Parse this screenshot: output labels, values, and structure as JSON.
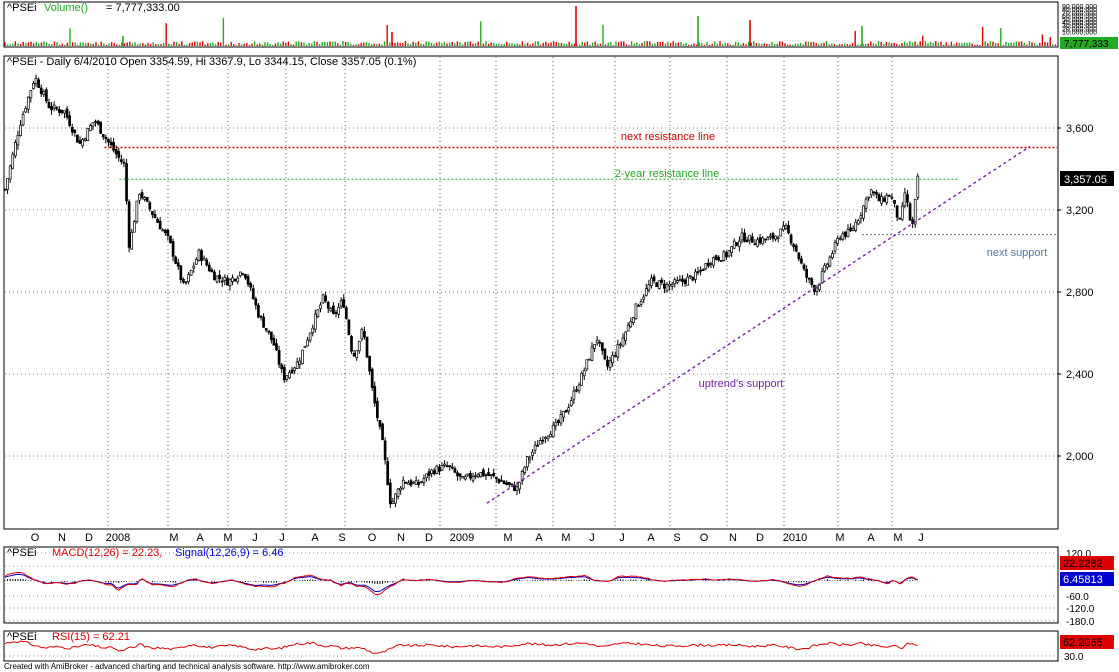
{
  "volume_panel": {
    "title_symbol": "^PSEi",
    "title_indicator": "Volume()",
    "title_value": "= 7,777,333.00",
    "axis_ticks": [
      "90,000,000",
      "80,000,000",
      "70,000,000",
      "60,000,000",
      "50,000,000",
      "40,000,000",
      "30,000,000",
      "20,000,000",
      "10,000,000"
    ],
    "last_value_label": "7,777,333"
  },
  "price_panel": {
    "title": "^PSEi - Daily 6/4/2010 Open 3354.59, Hi 3367.9, Lo 3344.15, Close 3357.05 (0.1%)",
    "y_ticks": [
      "3,600",
      "3,200",
      "2,800",
      "2,400",
      "2,000"
    ],
    "last_price_label": "3,357.05",
    "x_labels": [
      "O",
      "N",
      "D",
      "2008",
      "M",
      "A",
      "M",
      "J",
      "J",
      "A",
      "S",
      "O",
      "N",
      "D",
      "2009",
      "M",
      "A",
      "M",
      "J",
      "J",
      "A",
      "S",
      "O",
      "N",
      "D",
      "2010",
      "M",
      "A",
      "M",
      "J"
    ],
    "annotations": {
      "next_resistance": "next resistance line",
      "two_year_resistance": "2-year resistance line",
      "next_support": "next support",
      "uptrend_support": "uptrend's support"
    }
  },
  "macd_panel": {
    "symbol": "^PSEi",
    "macd_label": "MACD(12,26) = 22.23,",
    "signal_label": "Signal(12,26,9) = 6.46",
    "y_ticks": [
      "120.0",
      "60.0",
      "-60.0",
      "-120.0",
      "-180.0"
    ],
    "macd_value": "22.2282",
    "signal_value": "6.45813"
  },
  "rsi_panel": {
    "symbol": "^PSEi",
    "rsi_label": "RSI(15) = 62.21",
    "y_ticks": [
      "30.0"
    ],
    "rsi_value": "62.2065"
  },
  "footer": "Created with AmiBroker - advanced charting and technical analysis software. http://www.amibroker.com",
  "colors": {
    "up": "#ffffff",
    "down": "#000000",
    "resistance_red": "#cc0000",
    "resistance_green": "#22aa22",
    "support_blue": "#557799",
    "uptrend_purple": "#7a1fa2",
    "macd_red": "#dd0000",
    "signal_blue": "#0000cc",
    "rsi_red": "#dd0000"
  },
  "chart_data": {
    "type": "candlestick",
    "title": "^PSEi - Daily 6/4/2010 Open 3354.59, Hi 3367.9, Lo 3344.15, Close 3357.05 (0.1%)",
    "ylim": [
      1750,
      3950
    ],
    "x": [
      "O",
      "N",
      "D",
      "2008",
      "M",
      "A",
      "M",
      "J",
      "J",
      "A",
      "S",
      "O",
      "N",
      "D",
      "2009",
      "M",
      "A",
      "M",
      "J",
      "J",
      "A",
      "S",
      "O",
      "N",
      "D",
      "2010",
      "M",
      "A",
      "M",
      "J"
    ],
    "close_path": [
      [
        0,
        3300
      ],
      [
        15,
        3620
      ],
      [
        30,
        3850
      ],
      [
        45,
        3700
      ],
      [
        60,
        3680
      ],
      [
        75,
        3520
      ],
      [
        90,
        3640
      ],
      [
        100,
        3560
      ],
      [
        115,
        3450
      ],
      [
        120,
        3420
      ],
      [
        125,
        3020
      ],
      [
        135,
        3290
      ],
      [
        150,
        3170
      ],
      [
        165,
        3050
      ],
      [
        180,
        2820
      ],
      [
        195,
        2990
      ],
      [
        210,
        2880
      ],
      [
        225,
        2850
      ],
      [
        240,
        2910
      ],
      [
        255,
        2690
      ],
      [
        270,
        2550
      ],
      [
        280,
        2380
      ],
      [
        295,
        2460
      ],
      [
        310,
        2650
      ],
      [
        320,
        2770
      ],
      [
        330,
        2680
      ],
      [
        340,
        2760
      ],
      [
        350,
        2480
      ],
      [
        360,
        2620
      ],
      [
        370,
        2300
      ],
      [
        380,
        2050
      ],
      [
        388,
        1760
      ],
      [
        400,
        1880
      ],
      [
        415,
        1860
      ],
      [
        430,
        1930
      ],
      [
        445,
        1950
      ],
      [
        460,
        1880
      ],
      [
        475,
        1920
      ],
      [
        490,
        1900
      ],
      [
        505,
        1860
      ],
      [
        515,
        1840
      ],
      [
        525,
        1980
      ],
      [
        540,
        2090
      ],
      [
        555,
        2150
      ],
      [
        565,
        2230
      ],
      [
        580,
        2390
      ],
      [
        595,
        2580
      ],
      [
        605,
        2430
      ],
      [
        620,
        2560
      ],
      [
        635,
        2730
      ],
      [
        650,
        2850
      ],
      [
        665,
        2830
      ],
      [
        680,
        2850
      ],
      [
        695,
        2880
      ],
      [
        710,
        2960
      ],
      [
        725,
        2980
      ],
      [
        740,
        3070
      ],
      [
        755,
        3050
      ],
      [
        770,
        3060
      ],
      [
        785,
        3110
      ],
      [
        795,
        3010
      ],
      [
        805,
        2880
      ],
      [
        815,
        2810
      ],
      [
        825,
        2920
      ],
      [
        840,
        3080
      ],
      [
        850,
        3090
      ],
      [
        860,
        3180
      ],
      [
        870,
        3300
      ],
      [
        880,
        3240
      ],
      [
        890,
        3280
      ],
      [
        900,
        3130
      ],
      [
        905,
        3290
      ],
      [
        912,
        3100
      ],
      [
        918,
        3357
      ]
    ],
    "resistance_lines": [
      {
        "label": "next resistance line",
        "y": 3505
      },
      {
        "label": "2-year resistance line",
        "y": 3350
      },
      {
        "label": "next support",
        "y": 3080
      }
    ],
    "trendline": {
      "label": "uptrend's support",
      "from": {
        "x": 487,
        "y": 1770
      },
      "to": {
        "x": 1030,
        "y": 3510
      }
    },
    "last_close": 3357.05,
    "open": 3354.59,
    "high": 3367.9,
    "low": 3344.15,
    "volume_last": 7777333,
    "macd": 22.23,
    "signal": 6.46,
    "rsi": 62.21
  }
}
